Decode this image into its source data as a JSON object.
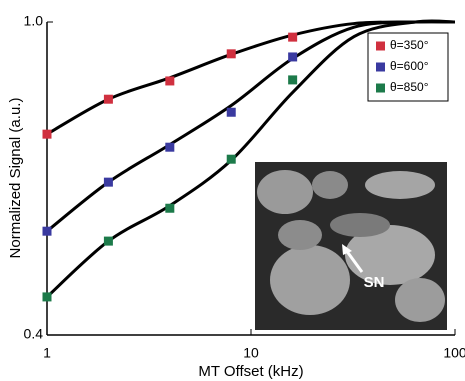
{
  "chart_data": {
    "type": "scatter-fit",
    "x_label": "MT Offset (kHz)",
    "y_label": "Normalized Signal (a.u.)",
    "x": [
      1,
      2,
      4,
      8,
      16
    ],
    "fit_x": [
      1,
      2,
      4,
      8,
      16,
      32,
      64,
      100
    ],
    "series": [
      {
        "name": "θ=350°",
        "color": "#d0303f",
        "values": [
          0.785,
          0.852,
          0.887,
          0.939,
          0.971
        ],
        "fit": [
          0.785,
          0.852,
          0.893,
          0.938,
          0.975,
          0.997,
          1.0,
          1.0
        ]
      },
      {
        "name": "θ=600°",
        "color": "#3a3aa0",
        "values": [
          0.599,
          0.693,
          0.76,
          0.827,
          0.933
        ],
        "fit": [
          0.599,
          0.693,
          0.765,
          0.84,
          0.93,
          0.99,
          1.0,
          1.0
        ]
      },
      {
        "name": "θ=850°",
        "color": "#1c7a4a",
        "values": [
          0.473,
          0.58,
          0.643,
          0.737,
          0.889
        ],
        "fit": [
          0.473,
          0.58,
          0.648,
          0.735,
          0.865,
          0.972,
          1.0,
          1.0
        ]
      }
    ],
    "xscale": "log",
    "xlim": [
      1,
      100
    ],
    "xticks": [
      1,
      10,
      100
    ],
    "ylim": [
      0.4,
      1.0
    ],
    "yticks": [
      0.4,
      {
        "value": 1.0,
        "label": "1.0"
      }
    ],
    "legend": "top-right",
    "annotation": "SN"
  }
}
